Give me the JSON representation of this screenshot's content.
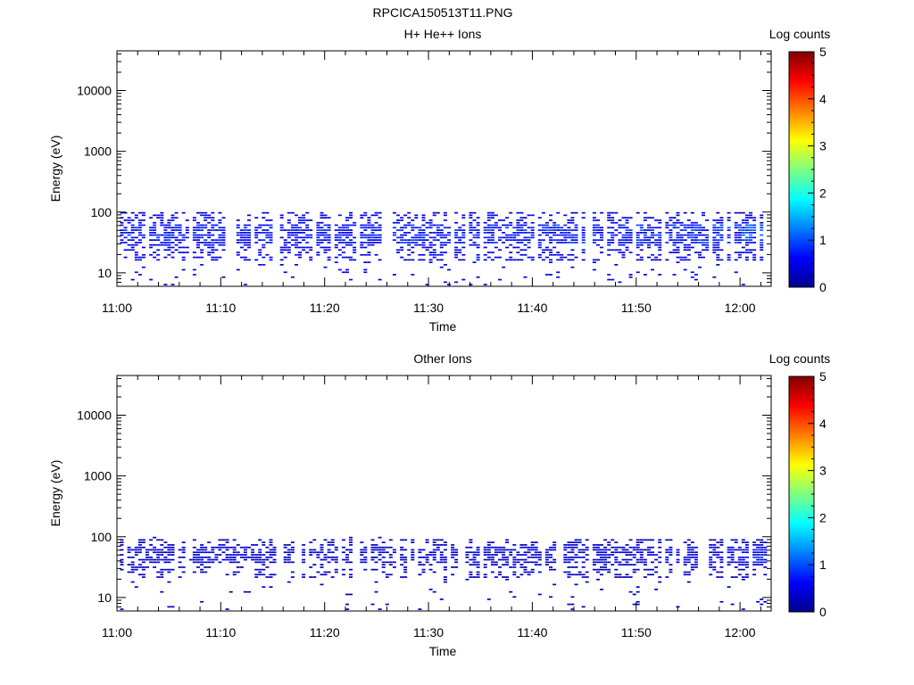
{
  "figure": {
    "title": "RPCICA150513T11.PNG"
  },
  "chart_data": [
    {
      "type": "heatmap",
      "title": "H+ He++ Ions",
      "xlabel": "Time",
      "ylabel": "Energy (eV)",
      "x_ticks": [
        "11:00",
        "11:10",
        "11:20",
        "11:30",
        "11:40",
        "11:50",
        "12:00"
      ],
      "y_ticks": [
        "10",
        "100",
        "1000",
        "10000"
      ],
      "y_scale": "log",
      "ylim": [
        6,
        45000
      ],
      "xlim_minutes_after_11_00": [
        0,
        63
      ],
      "grid": false,
      "colorbar": {
        "label": "Log counts",
        "ticks": [
          "0",
          "1",
          "2",
          "3",
          "4",
          "5"
        ],
        "range": [
          0,
          5
        ],
        "colormap": "rainbow"
      },
      "band_energy_ev": [
        15,
        100
      ],
      "peak_energy_ev": [
        30,
        60
      ],
      "typical_log_counts": 0.5,
      "max_log_counts": 1.6,
      "activity_by_segment": [
        {
          "time": "11:00",
          "level": 0.6
        },
        {
          "time": "11:10",
          "level": 0.6
        },
        {
          "time": "11:20",
          "level": 0.7
        },
        {
          "time": "11:30",
          "level": 0.7
        },
        {
          "time": "11:40",
          "level": 0.8
        },
        {
          "time": "11:50",
          "level": 1.0
        },
        {
          "time": "12:00",
          "level": 1.4
        }
      ]
    },
    {
      "type": "heatmap",
      "title": "Other Ions",
      "xlabel": "Time",
      "ylabel": "Energy (eV)",
      "x_ticks": [
        "11:00",
        "11:10",
        "11:20",
        "11:30",
        "11:40",
        "11:50",
        "12:00"
      ],
      "y_ticks": [
        "10",
        "100",
        "1000",
        "10000"
      ],
      "y_scale": "log",
      "ylim": [
        6,
        45000
      ],
      "xlim_minutes_after_11_00": [
        0,
        63
      ],
      "grid": false,
      "colorbar": {
        "label": "Log counts",
        "ticks": [
          "0",
          "1",
          "2",
          "3",
          "4",
          "5"
        ],
        "range": [
          0,
          5
        ],
        "colormap": "rainbow"
      },
      "band_energy_ev": [
        20,
        95
      ],
      "peak_energy_ev": [
        35,
        70
      ],
      "typical_log_counts": 0.3,
      "max_log_counts": 1.5,
      "activity_by_segment": [
        {
          "time": "11:00",
          "level": 0.3
        },
        {
          "time": "11:10",
          "level": 0.3
        },
        {
          "time": "11:20",
          "level": 0.3
        },
        {
          "time": "11:30",
          "level": 0.4
        },
        {
          "time": "11:40",
          "level": 0.5
        },
        {
          "time": "11:50",
          "level": 0.7
        },
        {
          "time": "12:00",
          "level": 1.3
        }
      ]
    }
  ]
}
